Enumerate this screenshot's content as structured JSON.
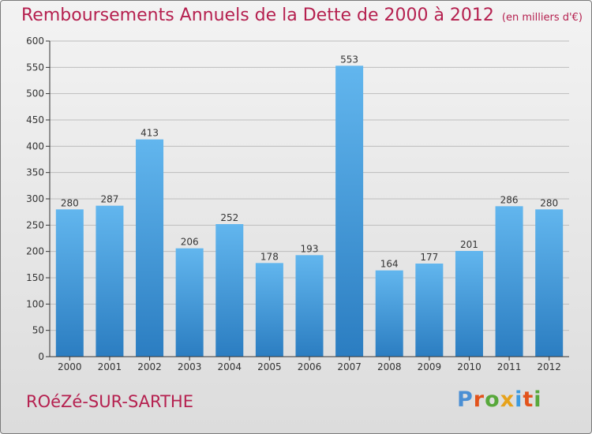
{
  "header": {
    "title": "Remboursements Annuels de la Dette de 2000 à 2012",
    "unit": "(en milliers d'€)"
  },
  "footer": {
    "commune": "ROéZé-SUR-SARTHE",
    "logo_text": "Proxiti",
    "logo_colors": [
      "#4a8fd4",
      "#e2531c",
      "#58a83b",
      "#e6a21b",
      "#3c9be0",
      "#e2531c",
      "#58a83b"
    ]
  },
  "colors": {
    "bar_light": "#62b6ee",
    "bar_dark": "#2b7dc1",
    "axis": "#333333",
    "grid": "#bdbdbd"
  },
  "chart_data": {
    "type": "bar",
    "categories": [
      "2000",
      "2001",
      "2002",
      "2003",
      "2004",
      "2005",
      "2006",
      "2007",
      "2008",
      "2009",
      "2010",
      "2011",
      "2012"
    ],
    "values": [
      280,
      287,
      413,
      206,
      252,
      178,
      193,
      553,
      164,
      177,
      201,
      286,
      280
    ],
    "ylim": [
      0,
      600
    ],
    "yticks": [
      0,
      50,
      100,
      150,
      200,
      250,
      300,
      350,
      400,
      450,
      500,
      550,
      600
    ],
    "grid": true,
    "data_labels": true,
    "xlabel": "",
    "ylabel": ""
  }
}
